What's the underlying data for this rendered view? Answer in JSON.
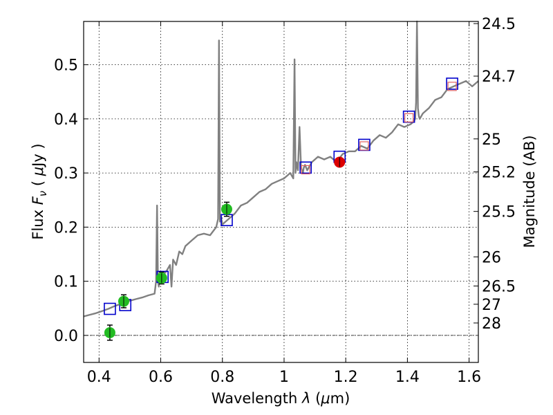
{
  "chart_data": {
    "type": "line",
    "xlabel_text": "Wavelength",
    "xlabel_symbol": "λ",
    "xlabel_unit_open": "(",
    "xlabel_mu": "μ",
    "xlabel_unit_rest": "m)",
    "ylabel_text": "Flux",
    "ylabel_symbol": "F",
    "ylabel_sub": "ν",
    "ylabel_open": "(",
    "ylabel_mu": "μ",
    "ylabel_unit": "Jy )",
    "y2label": "Magnitude (AB)",
    "xlim": [
      0.35,
      1.63
    ],
    "ylim": [
      -0.05,
      0.58
    ],
    "x_ticks": [
      {
        "value": 0.4,
        "label": "0.4"
      },
      {
        "value": 0.6,
        "label": "0.6"
      },
      {
        "value": 0.8,
        "label": "0.8"
      },
      {
        "value": 1.0,
        "label": "1"
      },
      {
        "value": 1.2,
        "label": "1.2"
      },
      {
        "value": 1.4,
        "label": "1.4"
      },
      {
        "value": 1.6,
        "label": "1.6"
      }
    ],
    "y_ticks": [
      {
        "value": 0.0,
        "label": "0.0"
      },
      {
        "value": 0.1,
        "label": "0.1"
      },
      {
        "value": 0.2,
        "label": "0.2"
      },
      {
        "value": 0.3,
        "label": "0.3"
      },
      {
        "value": 0.4,
        "label": "0.4"
      },
      {
        "value": 0.5,
        "label": "0.5"
      }
    ],
    "mag_ticks": [
      {
        "flux": 0.576,
        "label": "24.5"
      },
      {
        "flux": 0.479,
        "label": "24.7"
      },
      {
        "flux": 0.363,
        "label": "25"
      },
      {
        "flux": 0.302,
        "label": "25.2"
      },
      {
        "flux": 0.229,
        "label": "25.5"
      },
      {
        "flux": 0.145,
        "label": "26"
      },
      {
        "flux": 0.0912,
        "label": "26.5"
      },
      {
        "flux": 0.0575,
        "label": "27"
      },
      {
        "flux": 0.0229,
        "label": "28"
      }
    ],
    "zero_line": 0.0,
    "grid": true,
    "colors": {
      "model": "#808080",
      "model_points": "#0000cc",
      "model_points_inner": "#e06060",
      "obs_green": "#22bb22",
      "obs_red": "#dd0000",
      "errorbar": "#000000"
    },
    "series": [
      {
        "name": "model spectrum",
        "x": [
          0.35,
          0.37,
          0.39,
          0.41,
          0.43,
          0.45,
          0.47,
          0.49,
          0.5,
          0.52,
          0.54,
          0.56,
          0.58,
          0.585,
          0.588,
          0.591,
          0.594,
          0.597,
          0.6,
          0.62,
          0.63,
          0.635,
          0.64,
          0.65,
          0.66,
          0.67,
          0.68,
          0.7,
          0.72,
          0.74,
          0.76,
          0.78,
          0.786,
          0.789,
          0.792,
          0.795,
          0.8,
          0.82,
          0.84,
          0.86,
          0.88,
          0.9,
          0.92,
          0.94,
          0.96,
          0.98,
          1.0,
          1.02,
          1.03,
          1.034,
          1.037,
          1.04,
          1.045,
          1.05,
          1.055,
          1.058,
          1.061,
          1.064,
          1.068,
          1.075,
          1.09,
          1.11,
          1.13,
          1.15,
          1.17,
          1.19,
          1.21,
          1.23,
          1.25,
          1.27,
          1.29,
          1.31,
          1.33,
          1.35,
          1.37,
          1.39,
          1.41,
          1.42,
          1.425,
          1.428,
          1.431,
          1.434,
          1.437,
          1.44,
          1.45,
          1.47,
          1.49,
          1.51,
          1.53,
          1.55,
          1.57,
          1.59,
          1.61,
          1.63
        ],
        "y": [
          0.035,
          0.038,
          0.041,
          0.045,
          0.049,
          0.054,
          0.058,
          0.062,
          0.064,
          0.067,
          0.07,
          0.074,
          0.077,
          0.1,
          0.24,
          0.1,
          0.09,
          0.11,
          0.105,
          0.12,
          0.13,
          0.09,
          0.14,
          0.13,
          0.155,
          0.15,
          0.165,
          0.175,
          0.185,
          0.188,
          0.185,
          0.2,
          0.215,
          0.545,
          0.21,
          0.22,
          0.205,
          0.215,
          0.225,
          0.24,
          0.245,
          0.255,
          0.265,
          0.27,
          0.28,
          0.285,
          0.29,
          0.3,
          0.29,
          0.51,
          0.3,
          0.32,
          0.305,
          0.385,
          0.31,
          0.305,
          0.3,
          0.31,
          0.315,
          0.305,
          0.32,
          0.33,
          0.325,
          0.33,
          0.32,
          0.335,
          0.34,
          0.34,
          0.35,
          0.345,
          0.36,
          0.37,
          0.365,
          0.375,
          0.39,
          0.385,
          0.39,
          0.395,
          0.4,
          0.43,
          0.6,
          0.42,
          0.405,
          0.4,
          0.41,
          0.42,
          0.435,
          0.44,
          0.455,
          0.46,
          0.465,
          0.47,
          0.46,
          0.47
        ]
      },
      {
        "name": "model photometry",
        "points": [
          {
            "x": 0.435,
            "y": 0.049
          },
          {
            "x": 0.485,
            "y": 0.056
          },
          {
            "x": 0.606,
            "y": 0.108
          },
          {
            "x": 0.814,
            "y": 0.213
          },
          {
            "x": 1.07,
            "y": 0.31
          },
          {
            "x": 1.18,
            "y": 0.33
          },
          {
            "x": 1.26,
            "y": 0.352
          },
          {
            "x": 1.405,
            "y": 0.404
          },
          {
            "x": 1.545,
            "y": 0.465
          }
        ]
      },
      {
        "name": "model photometry inner",
        "points": [
          {
            "x": 1.07,
            "y": 0.306
          },
          {
            "x": 1.26,
            "y": 0.35
          },
          {
            "x": 1.405,
            "y": 0.402
          },
          {
            "x": 1.545,
            "y": 0.46
          }
        ]
      },
      {
        "name": "observed optical",
        "points": [
          {
            "x": 0.435,
            "y": 0.005,
            "err": 0.014
          },
          {
            "x": 0.48,
            "y": 0.063,
            "err": 0.012
          },
          {
            "x": 0.603,
            "y": 0.106,
            "err": 0.011
          },
          {
            "x": 0.814,
            "y": 0.233,
            "err": 0.013
          }
        ]
      },
      {
        "name": "observed near-IR",
        "points": [
          {
            "x": 1.18,
            "y": 0.32,
            "err": 0.006
          }
        ]
      }
    ]
  }
}
